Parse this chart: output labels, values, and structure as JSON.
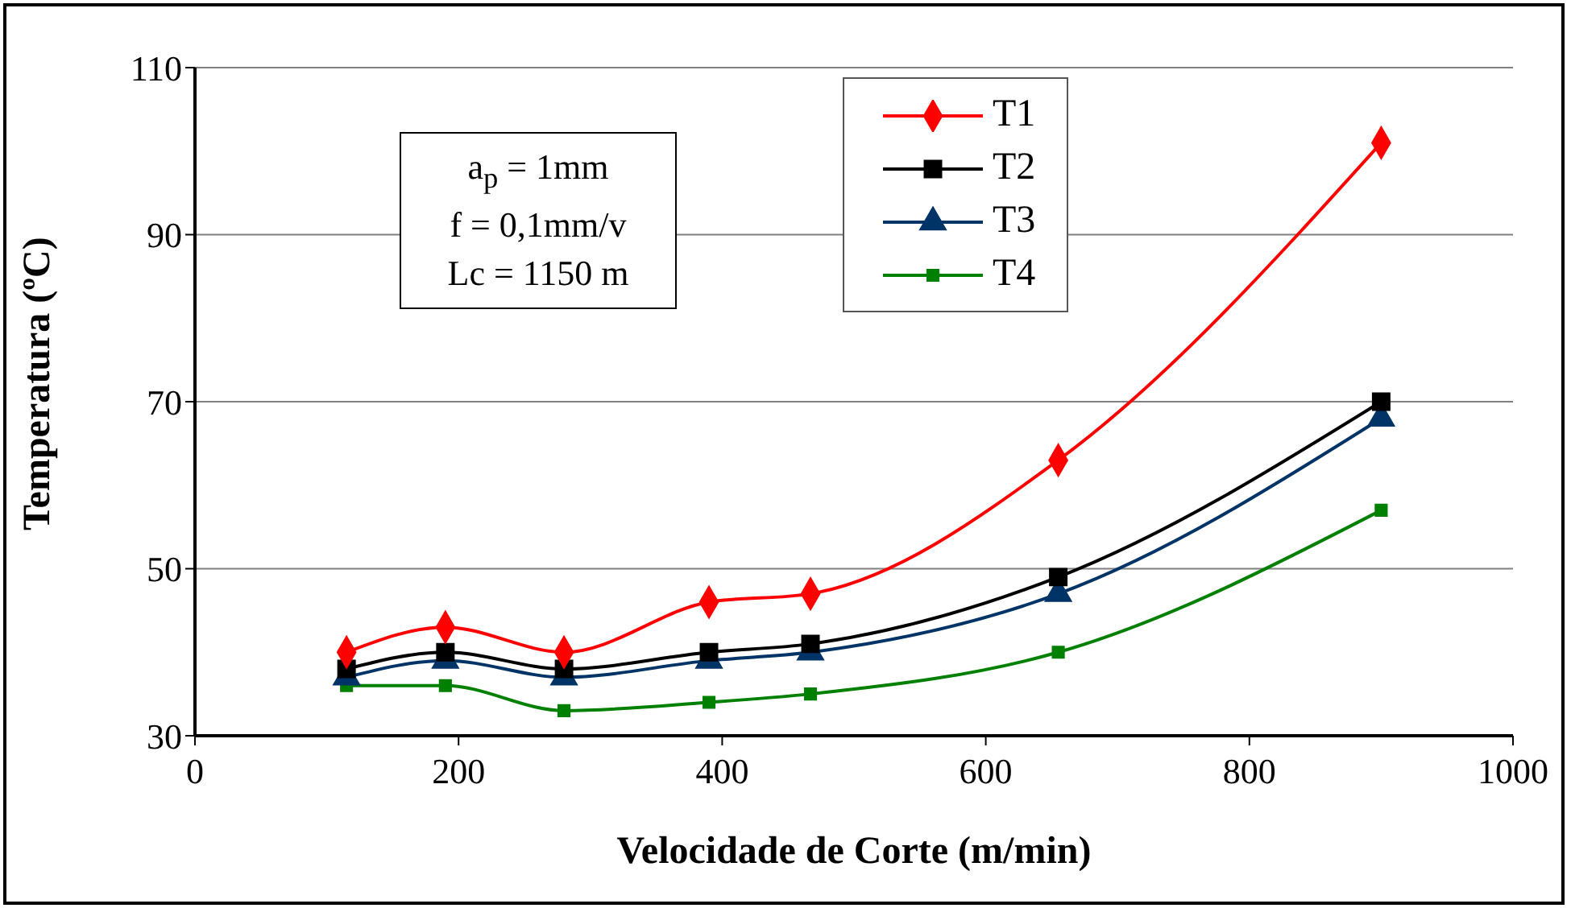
{
  "chart_data": {
    "type": "line",
    "xlabel": "Velocidade de Corte (m/min)",
    "ylabel": "Temperatura (ºC)",
    "x": [
      115,
      190,
      280,
      390,
      467,
      655,
      900
    ],
    "series": [
      {
        "name": "T1",
        "color": "#ff0000",
        "marker": "diamond",
        "values": [
          40,
          43,
          40,
          46,
          47,
          63,
          101
        ]
      },
      {
        "name": "T2",
        "color": "#000000",
        "marker": "square",
        "values": [
          38,
          40,
          38,
          40,
          41,
          49,
          70
        ]
      },
      {
        "name": "T3",
        "color": "#003366",
        "marker": "triangle",
        "values": [
          37,
          39,
          37,
          39,
          40,
          47,
          68
        ]
      },
      {
        "name": "T4",
        "color": "#008000",
        "marker": "square",
        "values": [
          36,
          36,
          33,
          34,
          35,
          40,
          57
        ]
      }
    ],
    "xlim": [
      0,
      1000
    ],
    "xticks": [
      0,
      200,
      400,
      600,
      800,
      1000
    ],
    "ylim": [
      30,
      110
    ],
    "yticks": [
      30,
      50,
      70,
      90,
      110
    ],
    "grid": "y",
    "legend": "top",
    "line_style": "solid",
    "annotations": [
      "a$_{p}$ = 1mm",
      "f = 0,1mm/v",
      "Lc = 1150 m"
    ]
  }
}
